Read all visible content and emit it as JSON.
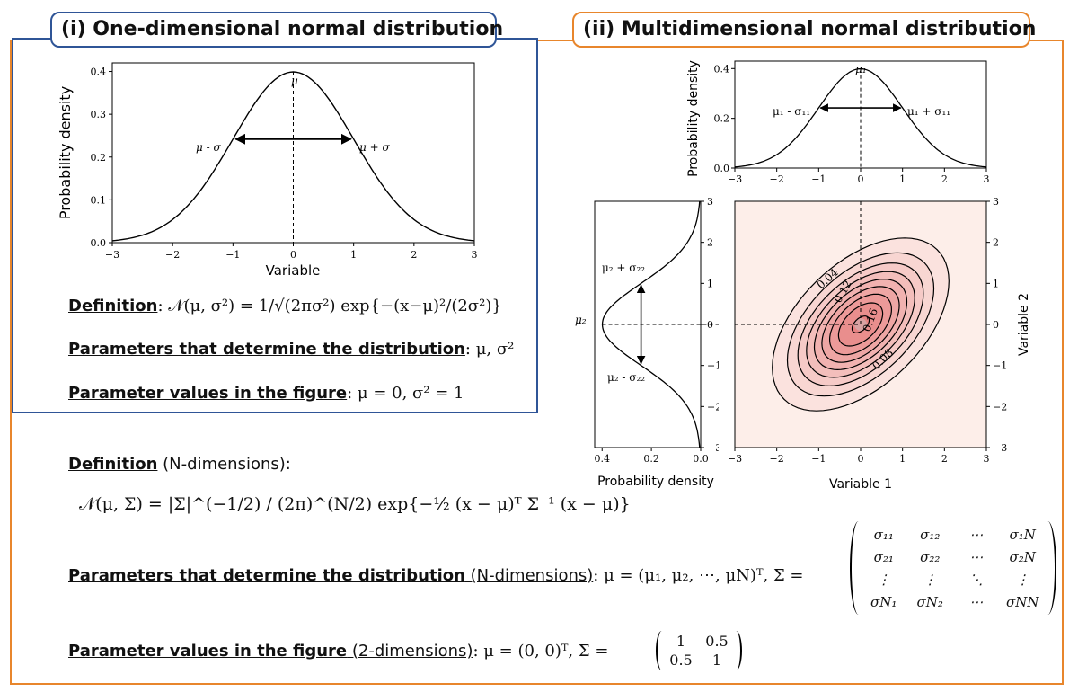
{
  "panel_left": {
    "title": "(i) One-dimensional normal distribution",
    "chart": {
      "ylabel": "Probability density",
      "xlabel": "Variable",
      "xticks": [
        "−3",
        "−2",
        "−1",
        "0",
        "1",
        "2",
        "3"
      ],
      "yticks": [
        "0.0",
        "0.1",
        "0.2",
        "0.3",
        "0.4"
      ],
      "label_mu": "μ",
      "label_minus": "μ - σ",
      "label_plus": "μ + σ"
    },
    "definition_label": "Definition",
    "definition_formula": ": 𝒩(μ, σ²) = 1/√(2πσ²) exp{−(x−μ)²/(2σ²)}",
    "params_label": "Parameters that determine the distribution",
    "params_value": ": μ, σ²",
    "values_label": "Parameter values in the figure",
    "values_value": ": μ = 0,  σ² = 1"
  },
  "panel_right": {
    "title": "(ii) Multidimensional normal distribution",
    "top_chart": {
      "ylabel": "Probability density",
      "xticks": [
        "−3",
        "−2",
        "−1",
        "0",
        "1",
        "2",
        "3"
      ],
      "yticks": [
        "0.0",
        "0.2",
        "0.4"
      ],
      "label_mu": "μ₁",
      "label_minus": "μ₁ - σ₁₁",
      "label_plus": "μ₁ + σ₁₁"
    },
    "side_chart": {
      "xlabel": "Probability density",
      "xticks": [
        "0.4",
        "0.2",
        "0.0"
      ],
      "yticks": [
        "3",
        "2",
        "1",
        "0",
        "−1",
        "−2",
        "−3"
      ],
      "label_mu": "μ₂",
      "label_plus": "μ₂ + σ₂₂",
      "label_minus": "μ₂ - σ₂₂"
    },
    "contour_chart": {
      "xlabel": "Variable 1",
      "ylabel": "Variable 2",
      "xticks": [
        "−3",
        "−2",
        "−1",
        "0",
        "1",
        "2",
        "3"
      ],
      "yticks": [
        "3",
        "2",
        "1",
        "0",
        "−1",
        "−2",
        "−3"
      ],
      "contour_labels": [
        "0.04",
        "0.12",
        "0.16",
        "0.08"
      ]
    },
    "definition_label": "Definition",
    "definition_suffix": " (N-dimensions):",
    "definition_formula": "𝒩(μ, Σ) = |Σ|^(−1/2) / (2π)^(N/2) exp{−½ (x − μ)ᵀ Σ⁻¹ (x − μ)}",
    "params_label": "Parameters that determine the distribution",
    "params_suffix": " (N-dimensions)",
    "params_value": ": μ = (μ₁, μ₂, ⋯, μN)ᵀ,   Σ =",
    "sigma_matrix": [
      [
        "σ₁₁",
        "σ₁₂",
        "⋯",
        "σ₁N"
      ],
      [
        "σ₂₁",
        "σ₂₂",
        "⋯",
        "σ₂N"
      ],
      [
        "⋮",
        "⋮",
        "⋱",
        "⋮"
      ],
      [
        "σN₁",
        "σN₂",
        "⋯",
        "σNN"
      ]
    ],
    "values_label": "Parameter values in the figure",
    "values_suffix": " (2-dimensions)",
    "values_value": ": μ = (0,  0)ᵀ,   Σ =",
    "value_matrix": [
      [
        "1",
        "0.5"
      ],
      [
        "0.5",
        "1"
      ]
    ]
  },
  "chart_data": [
    {
      "type": "line",
      "title": "",
      "xlabel": "Variable",
      "ylabel": "Probability density",
      "xlim": [
        -3,
        3
      ],
      "ylim": [
        0,
        0.42
      ],
      "series": [
        {
          "function": "standard normal pdf",
          "mean": 0,
          "variance": 1
        }
      ]
    },
    {
      "type": "heatmap",
      "xlabel": "Variable 1",
      "ylabel": "Variable 2",
      "xlim": [
        -3,
        3
      ],
      "ylim": [
        -3,
        3
      ],
      "mean": [
        0,
        0
      ],
      "covariance": [
        [
          1,
          0.5
        ],
        [
          0.5,
          1
        ]
      ],
      "contour_levels": [
        0.02,
        0.04,
        0.06,
        0.08,
        0.1,
        0.12,
        0.14,
        0.16,
        0.18
      ]
    }
  ]
}
